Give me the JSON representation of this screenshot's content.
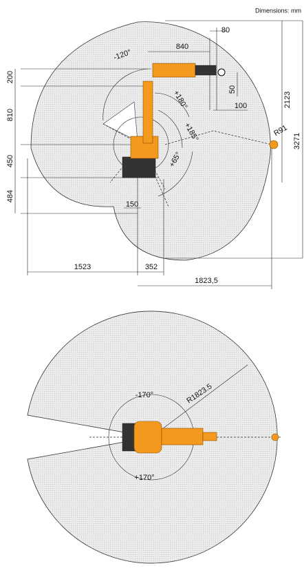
{
  "header": {
    "units": "Dimensions: mm"
  },
  "side_view": {
    "labels": [
      "80",
      "840",
      "-120°",
      "200",
      "50",
      "100",
      "+180°",
      "2123",
      "810",
      "+185°",
      "R91",
      "3271",
      "450",
      "+65°",
      "484",
      "150",
      "1523",
      "352",
      "1823,5"
    ]
  },
  "top_view": {
    "labels": [
      "-170°",
      "R1823.5",
      "+170°"
    ]
  }
}
